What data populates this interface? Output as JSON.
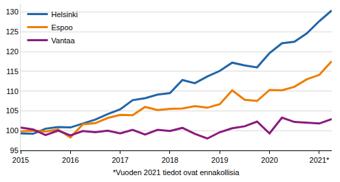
{
  "chart_data": {
    "type": "line",
    "categories": [
      "2015",
      null,
      null,
      null,
      "2016",
      null,
      null,
      null,
      "2017",
      null,
      null,
      null,
      "2018",
      null,
      null,
      null,
      "2019",
      null,
      null,
      null,
      "2020",
      null,
      null,
      null,
      "2021*",
      null
    ],
    "series": [
      {
        "name": "Helsinki",
        "color": "#2166a8",
        "values": [
          99.3,
          99.2,
          100.5,
          100.9,
          100.8,
          101.8,
          102.8,
          104.2,
          105.4,
          107.7,
          108.2,
          109.1,
          109.5,
          112.8,
          112.0,
          113.7,
          115.1,
          117.2,
          116.5,
          116.0,
          119.6,
          122.1,
          122.5,
          124.6,
          127.7,
          130.4
        ]
      },
      {
        "name": "Espoo",
        "color": "#ef7d00",
        "values": [
          99.8,
          100.0,
          99.8,
          100.3,
          98.3,
          101.6,
          101.9,
          103.2,
          104.0,
          103.9,
          106.0,
          105.2,
          105.5,
          105.6,
          106.2,
          105.8,
          106.7,
          110.2,
          107.8,
          107.5,
          110.3,
          110.2,
          111.1,
          113.0,
          114.1,
          117.6
        ]
      },
      {
        "name": "Vantaa",
        "color": "#8b1a7e",
        "values": [
          100.8,
          100.3,
          98.9,
          100.0,
          98.8,
          99.9,
          99.6,
          100.0,
          99.3,
          100.2,
          99.0,
          100.2,
          99.9,
          100.7,
          99.2,
          98.0,
          99.6,
          100.6,
          101.1,
          102.3,
          99.3,
          103.3,
          102.2,
          102.0,
          101.8,
          102.9
        ]
      }
    ],
    "ylim": [
      95,
      132
    ],
    "yticks": [
      95,
      100,
      105,
      110,
      115,
      120,
      125,
      130
    ],
    "grid": true,
    "legend": "upper left",
    "annotations": [
      "*Vuoden 2021 tiedot ovat ennakollisia"
    ]
  }
}
